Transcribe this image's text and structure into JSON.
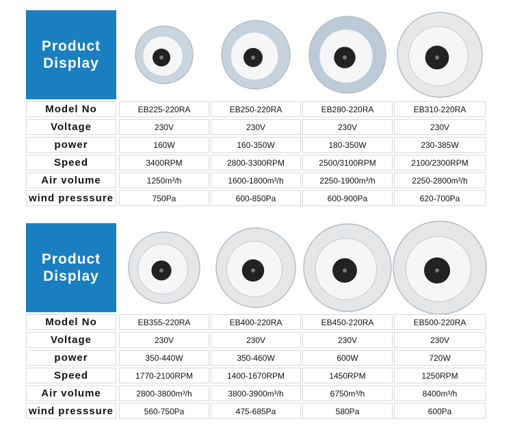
{
  "sections": [
    {
      "title": "Product Display",
      "table": {
        "rows": [
          [
            "Model No",
            "EB225-220RA",
            "EB250-220RA",
            "EB280-220RA",
            "EB310-220RA"
          ],
          [
            "Voltage",
            "230V",
            "230V",
            "230V",
            "230V"
          ],
          [
            "power",
            "160W",
            "160-350W",
            "180-350W",
            "230-385W"
          ],
          [
            "Speed",
            "3400RPM",
            "2800-3300RPM",
            "2500/3100RPM",
            "2100/2300RPM"
          ],
          [
            "Air volume",
            "1250m³/h",
            "1600-1800m³/h",
            "2250-1900m³/h",
            "2250-2800m³/h"
          ],
          [
            "wind presssure",
            "750Pa",
            "600-850Pa",
            "600-900Pa",
            "620-700Pa"
          ]
        ]
      }
    },
    {
      "title": "Product Display",
      "table": {
        "rows": [
          [
            "Model No",
            "EB355-220RA",
            "EB400-220RA",
            "EB450-220RA",
            "EB500-220RA"
          ],
          [
            "Voltage",
            "230V",
            "230V",
            "230V",
            "230V"
          ],
          [
            "power",
            "350-440W",
            "350-460W",
            "600W",
            "720W"
          ],
          [
            "Speed",
            "1770-2100RPM",
            "1400-1670RPM",
            "1450RPM",
            "1250RPM"
          ],
          [
            "Air volume",
            "2800-3800m³/h",
            "3800-3900m³/h",
            "6750m³/h",
            "8400m³/h"
          ],
          [
            "wind presssure",
            "560-750Pa",
            "475-685Pa",
            "580Pa",
            "600Pa"
          ]
        ]
      }
    }
  ]
}
